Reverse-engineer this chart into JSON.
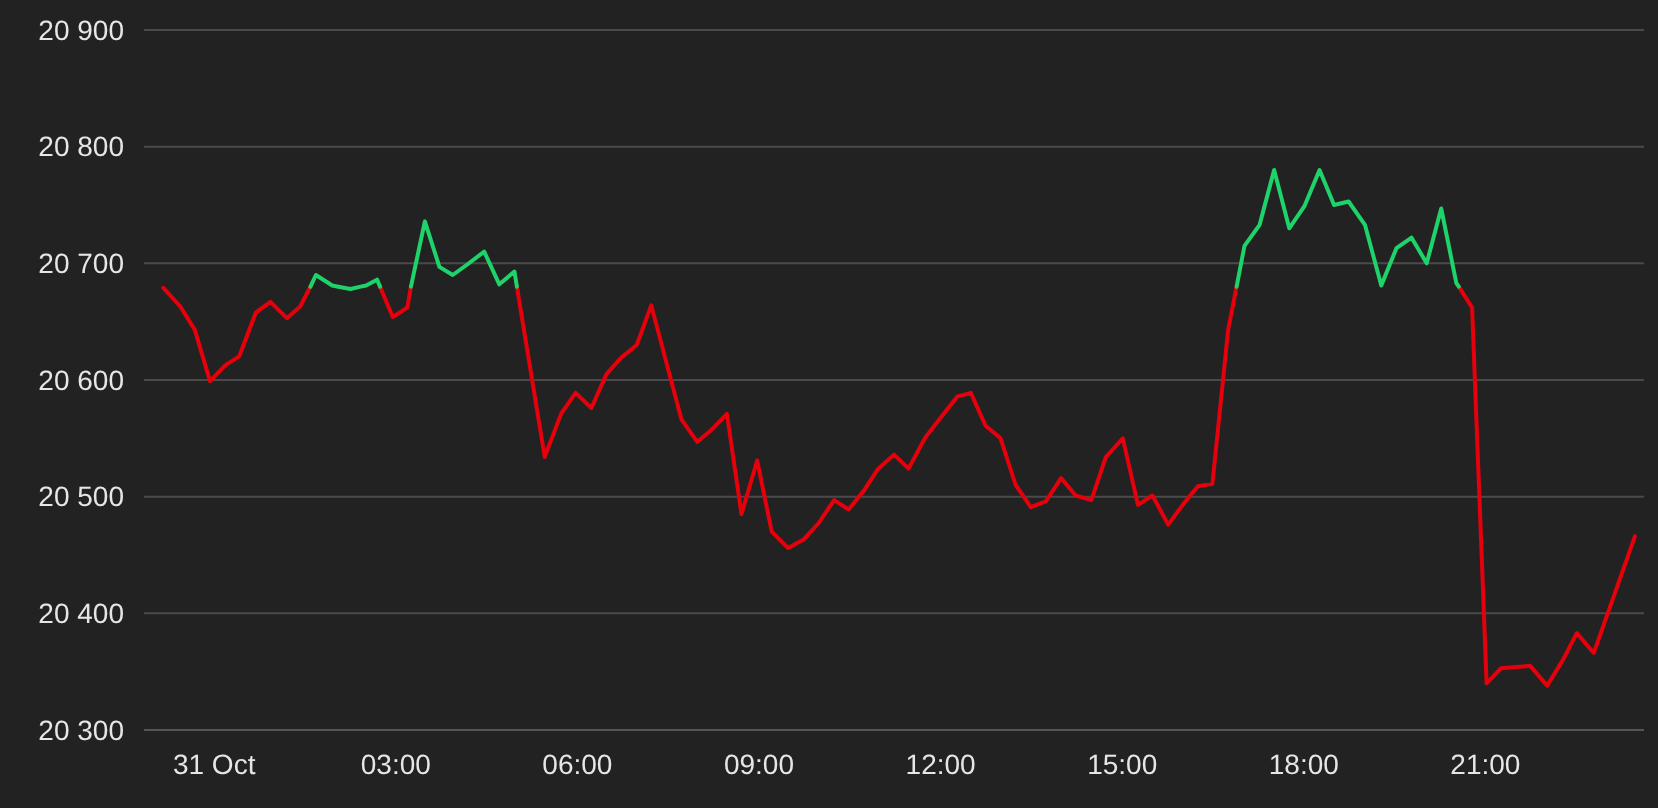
{
  "chart_data": {
    "type": "line",
    "x": [
      -0.84,
      -0.56,
      -0.32,
      -0.07,
      0.19,
      0.41,
      0.69,
      0.93,
      1.2,
      1.42,
      1.59,
      1.68,
      1.95,
      2.05,
      2.25,
      2.42,
      2.51,
      2.69,
      2.74,
      2.95,
      3.19,
      3.25,
      3.48,
      3.72,
      3.94,
      4.18,
      4.46,
      4.71,
      4.96,
      5.0,
      5.46,
      5.73,
      5.97,
      6.23,
      6.48,
      6.72,
      6.98,
      7.22,
      7.72,
      7.98,
      8.21,
      8.47,
      8.71,
      8.97,
      9.21,
      9.48,
      9.73,
      9.98,
      10.24,
      10.48,
      10.73,
      10.97,
      11.23,
      11.47,
      11.75,
      12.02,
      12.28,
      12.5,
      12.74,
      12.99,
      13.24,
      13.49,
      13.74,
      13.99,
      14.23,
      14.49,
      14.73,
      15.01,
      15.26,
      15.5,
      15.76,
      16.0,
      16.25,
      16.49,
      16.75,
      16.89,
      17.02,
      17.27,
      17.51,
      17.76,
      18.01,
      18.26,
      18.5,
      18.74,
      19.01,
      19.28,
      19.53,
      19.78,
      20.03,
      20.27,
      20.52,
      20.56,
      20.78,
      21.02,
      21.26,
      21.52,
      21.74,
      22.02,
      22.27,
      22.51,
      22.79,
      23.47
    ],
    "series": [
      {
        "color": "#e5000b",
        "values": [
          20679,
          20663,
          20643,
          20599,
          20613,
          20620,
          20658,
          20667,
          20653,
          20663,
          20680,
          null,
          null,
          null,
          null,
          null,
          null,
          null,
          20680,
          20654,
          20662,
          20680,
          null,
          null,
          null,
          null,
          null,
          null,
          null,
          20680,
          20534,
          20571,
          20589,
          20576,
          20605,
          20619,
          20630,
          20664,
          20566,
          20547,
          20557,
          20571,
          20485,
          20531,
          20470,
          20456,
          20463,
          20477,
          20497,
          20489,
          20505,
          20524,
          20536,
          20524,
          20551,
          20569,
          20586,
          20589,
          20561,
          20550,
          20510,
          20491,
          20496,
          20516,
          20501,
          20497,
          20534,
          20550,
          20493,
          20501,
          20476,
          20493,
          20509,
          20511,
          20643,
          20680,
          null,
          null,
          null,
          null,
          null,
          null,
          null,
          null,
          null,
          null,
          null,
          null,
          null,
          null,
          null,
          20680,
          20662,
          20340,
          20353,
          20354,
          20355,
          20338,
          20359,
          20383,
          20366,
          20466
        ]
      },
      {
        "color": "#1ed36a",
        "values": [
          null,
          null,
          null,
          null,
          null,
          null,
          null,
          null,
          null,
          null,
          20680,
          20690,
          20681,
          20680,
          20678,
          20680,
          20681,
          20686,
          20680,
          null,
          null,
          20680,
          20736,
          20697,
          20690,
          20699,
          20710,
          20682,
          20693,
          20680,
          null,
          null,
          null,
          null,
          null,
          null,
          null,
          null,
          null,
          null,
          null,
          null,
          null,
          null,
          null,
          null,
          null,
          null,
          null,
          null,
          null,
          null,
          null,
          null,
          null,
          null,
          null,
          null,
          null,
          null,
          null,
          null,
          null,
          null,
          null,
          null,
          null,
          null,
          null,
          null,
          null,
          null,
          null,
          null,
          null,
          20680,
          20715,
          20733,
          20780,
          20730,
          20749,
          20780,
          20750,
          20753,
          20733,
          20681,
          20713,
          20722,
          20700,
          20747,
          20683,
          20680,
          null,
          null,
          null,
          null,
          null,
          null,
          null,
          null,
          null,
          null
        ]
      }
    ],
    "xlim": [
      -1.16,
      23.62
    ],
    "xticks": [
      {
        "value": 0,
        "label": "31 Oct"
      },
      {
        "value": 3,
        "label": "03:00"
      },
      {
        "value": 6,
        "label": "06:00"
      },
      {
        "value": 9,
        "label": "09:00"
      },
      {
        "value": 12,
        "label": "12:00"
      },
      {
        "value": 15,
        "label": "15:00"
      },
      {
        "value": 18,
        "label": "18:00"
      },
      {
        "value": 21,
        "label": "21:00"
      }
    ],
    "ylim": [
      20300,
      20900
    ],
    "yticks": [
      {
        "value": 20300,
        "label": "20 300"
      },
      {
        "value": 20400,
        "label": "20 400"
      },
      {
        "value": 20500,
        "label": "20 500"
      },
      {
        "value": 20600,
        "label": "20 600"
      },
      {
        "value": 20700,
        "label": "20 700"
      },
      {
        "value": 20800,
        "label": "20 800"
      },
      {
        "value": 20900,
        "label": "20 900"
      }
    ],
    "grid": "y",
    "marker": "none",
    "line_style": "solid"
  }
}
